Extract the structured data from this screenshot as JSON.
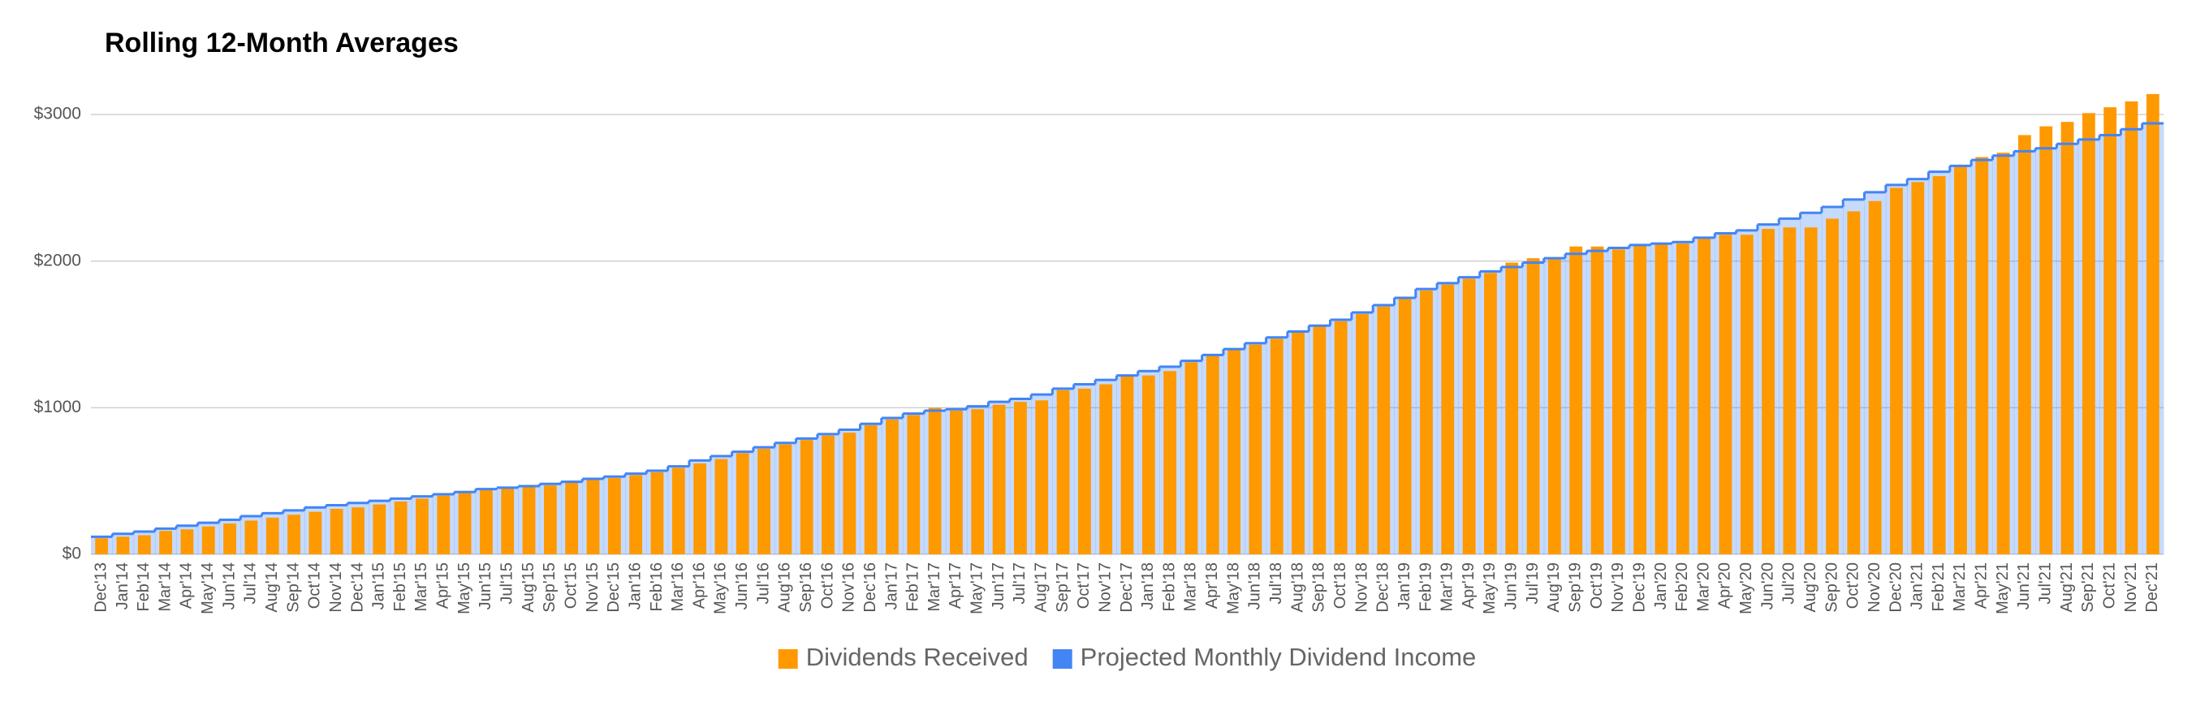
{
  "chart_data": {
    "type": "combo",
    "title": "Rolling 12-Month Averages",
    "categories": [
      "Dec'13",
      "Jan'14",
      "Feb'14",
      "Mar'14",
      "Apr'14",
      "May'14",
      "Jun'14",
      "Jul'14",
      "Aug'14",
      "Sep'14",
      "Oct'14",
      "Nov'14",
      "Dec'14",
      "Jan'15",
      "Feb'15",
      "Mar'15",
      "Apr'15",
      "May'15",
      "Jun'15",
      "Jul'15",
      "Aug'15",
      "Sep'15",
      "Oct'15",
      "Nov'15",
      "Dec'15",
      "Jan'16",
      "Feb'16",
      "Mar'16",
      "Apr'16",
      "May'16",
      "Jun'16",
      "Jul'16",
      "Aug'16",
      "Sep'16",
      "Oct'16",
      "Nov'16",
      "Dec'16",
      "Jan'17",
      "Feb'17",
      "Mar'17",
      "Apr'17",
      "May'17",
      "Jun'17",
      "Jul'17",
      "Aug'17",
      "Sep'17",
      "Oct'17",
      "Nov'17",
      "Dec'17",
      "Jan'18",
      "Feb'18",
      "Mar'18",
      "Apr'18",
      "May'18",
      "Jun'18",
      "Jul'18",
      "Aug'18",
      "Sep'18",
      "Oct'18",
      "Nov'18",
      "Dec'18",
      "Jan'19",
      "Feb'19",
      "Mar'19",
      "Apr'19",
      "May'19",
      "Jun'19",
      "Jul'19",
      "Aug'19",
      "Sep'19",
      "Oct'19",
      "Nov'19",
      "Dec'19",
      "Jan'20",
      "Feb'20",
      "Mar'20",
      "Apr'20",
      "May'20",
      "Jun'20",
      "Jul'20",
      "Aug'20",
      "Sep'20",
      "Oct'20",
      "Nov'20",
      "Dec'20",
      "Jan'21",
      "Feb'21",
      "Mar'21",
      "Apr'21",
      "May'21",
      "Jun'21",
      "Jul'21",
      "Aug'21",
      "Sep'21",
      "Oct'21",
      "Nov'21",
      "Dec'21"
    ],
    "series": [
      {
        "name": "Dividends Received",
        "type": "bar",
        "color": "#ff9900",
        "values": [
          110,
          120,
          130,
          160,
          170,
          190,
          210,
          230,
          250,
          270,
          290,
          310,
          320,
          340,
          360,
          380,
          400,
          420,
          440,
          450,
          460,
          470,
          490,
          510,
          520,
          540,
          560,
          590,
          620,
          650,
          690,
          720,
          750,
          780,
          810,
          830,
          880,
          920,
          950,
          1000,
          980,
          990,
          1020,
          1040,
          1050,
          1120,
          1130,
          1160,
          1220,
          1220,
          1250,
          1310,
          1360,
          1400,
          1430,
          1470,
          1520,
          1560,
          1590,
          1640,
          1690,
          1750,
          1800,
          1840,
          1880,
          1920,
          1990,
          2020,
          2020,
          2100,
          2100,
          2080,
          2110,
          2120,
          2120,
          2160,
          2180,
          2180,
          2220,
          2230,
          2230,
          2290,
          2340,
          2410,
          2500,
          2540,
          2580,
          2650,
          2710,
          2740,
          2860,
          2920,
          2950,
          3010,
          3050,
          3090,
          3140
        ]
      },
      {
        "name": "Projected Monthly Dividend Income",
        "type": "step-area",
        "color": "#4285f4",
        "values": [
          120,
          140,
          155,
          175,
          195,
          215,
          235,
          260,
          280,
          300,
          320,
          335,
          350,
          365,
          380,
          395,
          410,
          425,
          445,
          455,
          465,
          480,
          495,
          515,
          530,
          550,
          570,
          600,
          640,
          670,
          700,
          730,
          760,
          790,
          820,
          850,
          890,
          930,
          960,
          980,
          990,
          1010,
          1040,
          1060,
          1090,
          1130,
          1160,
          1190,
          1220,
          1250,
          1280,
          1320,
          1360,
          1400,
          1440,
          1480,
          1520,
          1560,
          1600,
          1650,
          1700,
          1750,
          1810,
          1850,
          1890,
          1930,
          1960,
          1990,
          2020,
          2050,
          2070,
          2090,
          2110,
          2120,
          2130,
          2160,
          2190,
          2210,
          2250,
          2290,
          2330,
          2370,
          2420,
          2470,
          2520,
          2560,
          2610,
          2650,
          2690,
          2720,
          2750,
          2770,
          2800,
          2830,
          2860,
          2900,
          2940
        ]
      }
    ],
    "ylim": [
      0,
      3300
    ],
    "yticks": [
      {
        "value": 0,
        "label": "$0"
      },
      {
        "value": 1000,
        "label": "$1000"
      },
      {
        "value": 2000,
        "label": "$2000"
      },
      {
        "value": 3000,
        "label": "$3000"
      }
    ],
    "grid": true,
    "legend": "bottom"
  }
}
